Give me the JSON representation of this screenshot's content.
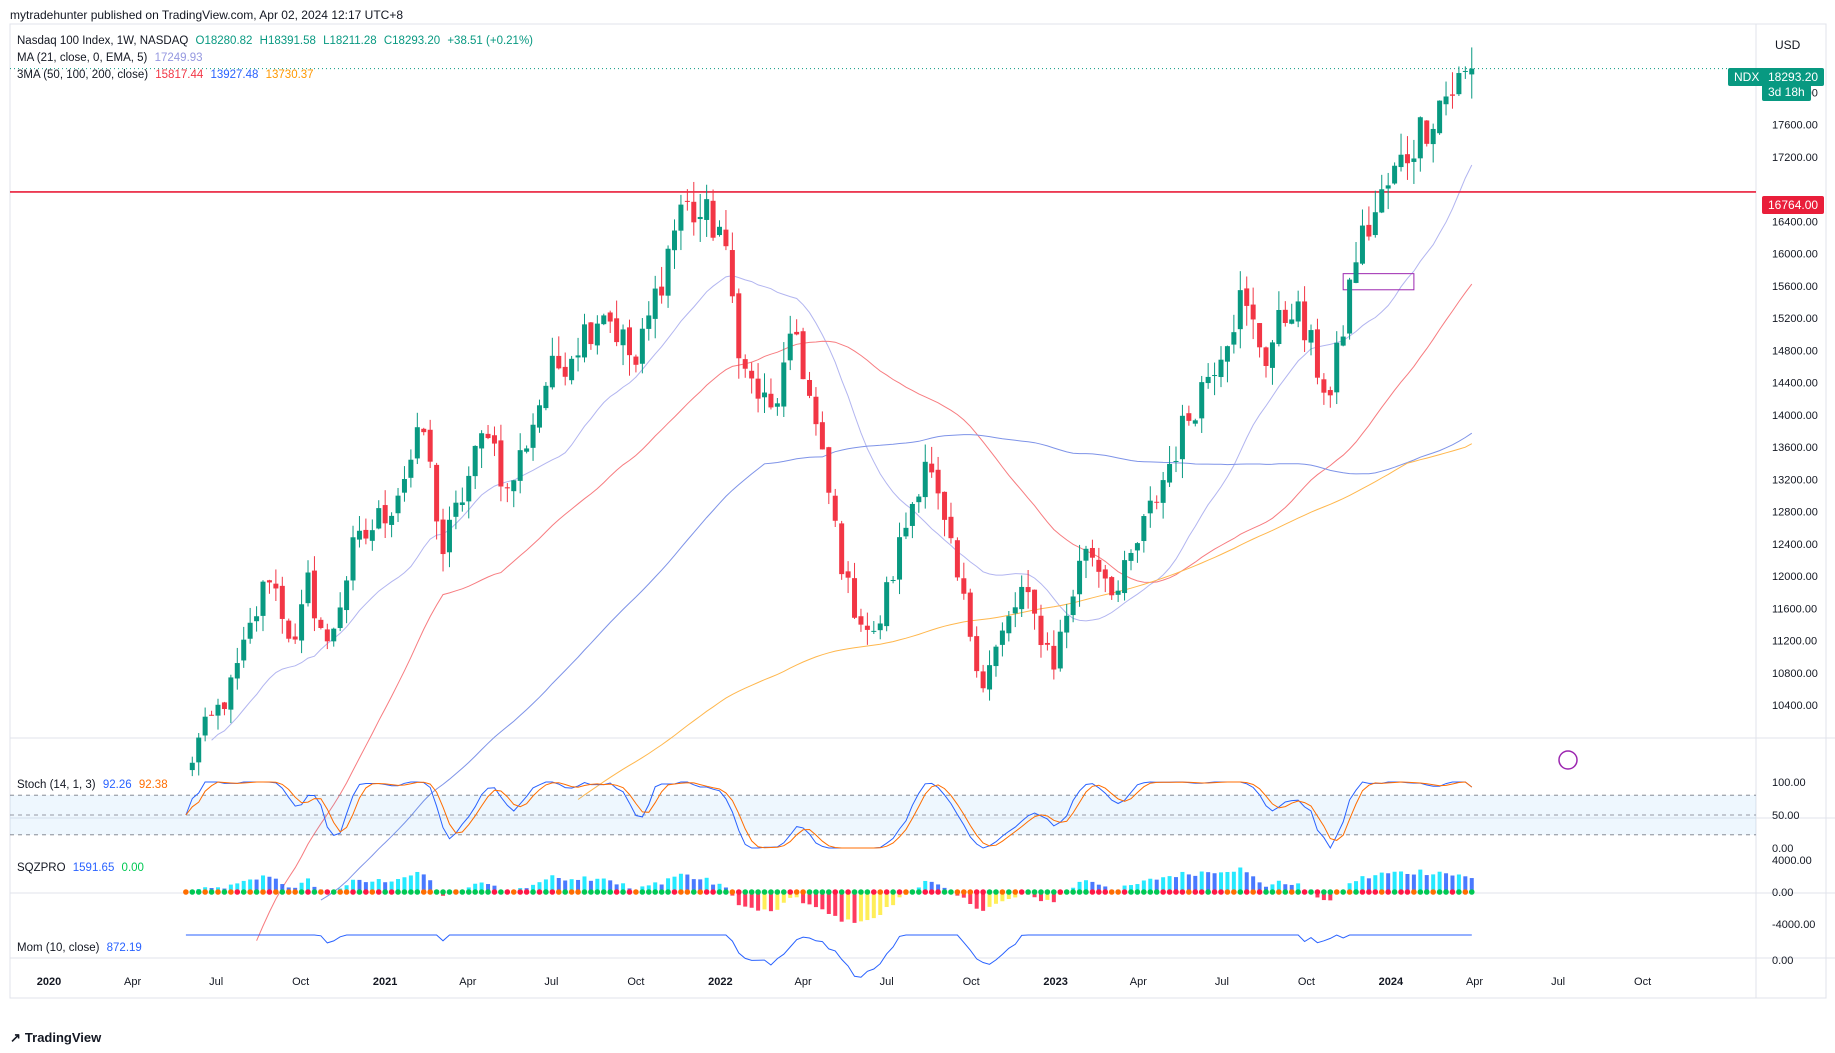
{
  "header": {
    "publisher": "mytradehunter published on TradingView.com, Apr 02, 2024 12:17 UTC+8",
    "currency": "USD"
  },
  "legend": {
    "symbol_line": "Nasdaq 100 Index, 1W, NASDAQ",
    "o": "O18280.82",
    "h": "H18391.58",
    "l": "L18211.28",
    "c": "C18293.20",
    "chg": "+38.51 (+0.21%)",
    "ma_label": "MA (21, close, 0, EMA, 5)",
    "ma_value": "17249.93",
    "sma_label": "3MA (50, 100, 200, close)",
    "sma50": "15817.44",
    "sma100": "13927.48",
    "sma200": "13730.37",
    "stoch_label": "Stoch (14, 1, 3)",
    "stoch_k": "92.26",
    "stoch_d": "92.38",
    "sqz_label": "SQZPRO",
    "sqz_v1": "1591.65",
    "sqz_v2": "0.00",
    "mom_label": "Mom (10, close)",
    "mom_value": "872.19"
  },
  "tags": {
    "symbol": "NDX",
    "last_price": "18293.20",
    "countdown": "3d 18h",
    "level_price": "16764.00"
  },
  "brand": {
    "name": "TradingView"
  },
  "colors": {
    "up": "#089981",
    "down": "#f23645",
    "ema21": "#b2b5f0",
    "sma50": "#f77c80",
    "sma100": "#7e93e8",
    "sma200": "#ffb74d",
    "level": "#e91e3a",
    "stoch_k": "#2962ff",
    "stoch_d": "#ff6d00",
    "mom": "#2962ff"
  },
  "chart_data": [
    {
      "type": "candlestick",
      "title": "Nasdaq 100 Index, 1W, NASDAQ",
      "y_axis_ticks": [
        "10400.00",
        "10800.00",
        "11200.00",
        "11600.00",
        "12000.00",
        "12400.00",
        "12800.00",
        "13200.00",
        "13600.00",
        "14000.00",
        "14400.00",
        "14800.00",
        "15200.00",
        "15600.00",
        "16000.00",
        "16400.00",
        "17200.00",
        "17600.00",
        "18000.00"
      ],
      "x_axis_ticks": [
        "2020",
        "Apr",
        "Jul",
        "Oct",
        "2021",
        "Apr",
        "Jul",
        "Oct",
        "2022",
        "Apr",
        "Jul",
        "Oct",
        "2023",
        "Apr",
        "Jul",
        "Oct",
        "2024",
        "Apr",
        "Jul",
        "Oct"
      ],
      "ylim": [
        10100,
        18750
      ],
      "close_points": [
        [
          "2020-05-29",
          9550
        ],
        [
          "2020-06-12",
          9950
        ],
        [
          "2020-07-17",
          10600
        ],
        [
          "2020-08-28",
          12050
        ],
        [
          "2020-09-25",
          11100
        ],
        [
          "2020-10-09",
          11900
        ],
        [
          "2020-10-30",
          11100
        ],
        [
          "2020-11-27",
          12300
        ],
        [
          "2021-01-08",
          12900
        ],
        [
          "2021-02-12",
          13800
        ],
        [
          "2021-03-05",
          12300
        ],
        [
          "2021-03-26",
          13000
        ],
        [
          "2021-04-23",
          13900
        ],
        [
          "2021-05-14",
          13000
        ],
        [
          "2021-06-25",
          14400
        ],
        [
          "2021-08-27",
          15350
        ],
        [
          "2021-10-01",
          14600
        ],
        [
          "2021-11-19",
          16600
        ],
        [
          "2021-12-31",
          16320
        ],
        [
          "2022-01-28",
          14500
        ],
        [
          "2022-02-25",
          14000
        ],
        [
          "2022-03-25",
          15000
        ],
        [
          "2022-05-20",
          11800
        ],
        [
          "2022-06-17",
          11200
        ],
        [
          "2022-08-12",
          13500
        ],
        [
          "2022-10-14",
          10700
        ],
        [
          "2022-11-25",
          11800
        ],
        [
          "2022-12-30",
          10950
        ],
        [
          "2023-02-03",
          12400
        ],
        [
          "2023-03-10",
          11800
        ],
        [
          "2023-05-26",
          14000
        ],
        [
          "2023-07-21",
          15400
        ],
        [
          "2023-08-18",
          14750
        ],
        [
          "2023-09-15",
          15400
        ],
        [
          "2023-10-27",
          14200
        ],
        [
          "2023-11-24",
          16000
        ],
        [
          "2023-12-29",
          16830
        ],
        [
          "2024-01-26",
          17400
        ],
        [
          "2024-02-23",
          17900
        ],
        [
          "2024-03-29",
          18254
        ],
        [
          "2024-04-01",
          18293.2
        ]
      ],
      "horizontal_level": 16764,
      "annotation_box": {
        "from": "2023-11-10",
        "to": "2024-01-26",
        "low": 15550,
        "high": 15750
      },
      "series": [
        {
          "name": "MA (21, close, 0, EMA, 5)",
          "last": 17249.93
        },
        {
          "name": "SMA 50",
          "last": 15817.44
        },
        {
          "name": "SMA 100",
          "last": 13927.48
        },
        {
          "name": "SMA 200",
          "last": 13730.37
        }
      ]
    },
    {
      "type": "line",
      "title": "Stoch (14, 1, 3)",
      "y_axis_ticks": [
        "100.00",
        "50.00",
        "0.00"
      ],
      "ylim": [
        0,
        100
      ],
      "bands": [
        80,
        50,
        20
      ],
      "series": [
        {
          "name": "%K",
          "last": 92.26
        },
        {
          "name": "%D",
          "last": 92.38
        }
      ]
    },
    {
      "type": "bar",
      "title": "SQZPRO",
      "y_axis_ticks": [
        "4000.00",
        "0.00",
        "-4000.00"
      ],
      "ylim": [
        -4000,
        4000
      ],
      "series": [
        {
          "name": "momentum",
          "last": 1591.65
        },
        {
          "name": "squeeze",
          "last": 0.0
        }
      ]
    },
    {
      "type": "line",
      "title": "Mom (10, close)",
      "y_axis_ticks": [
        "0.00"
      ],
      "series": [
        {
          "name": "Mom",
          "last": 872.19
        }
      ]
    }
  ]
}
